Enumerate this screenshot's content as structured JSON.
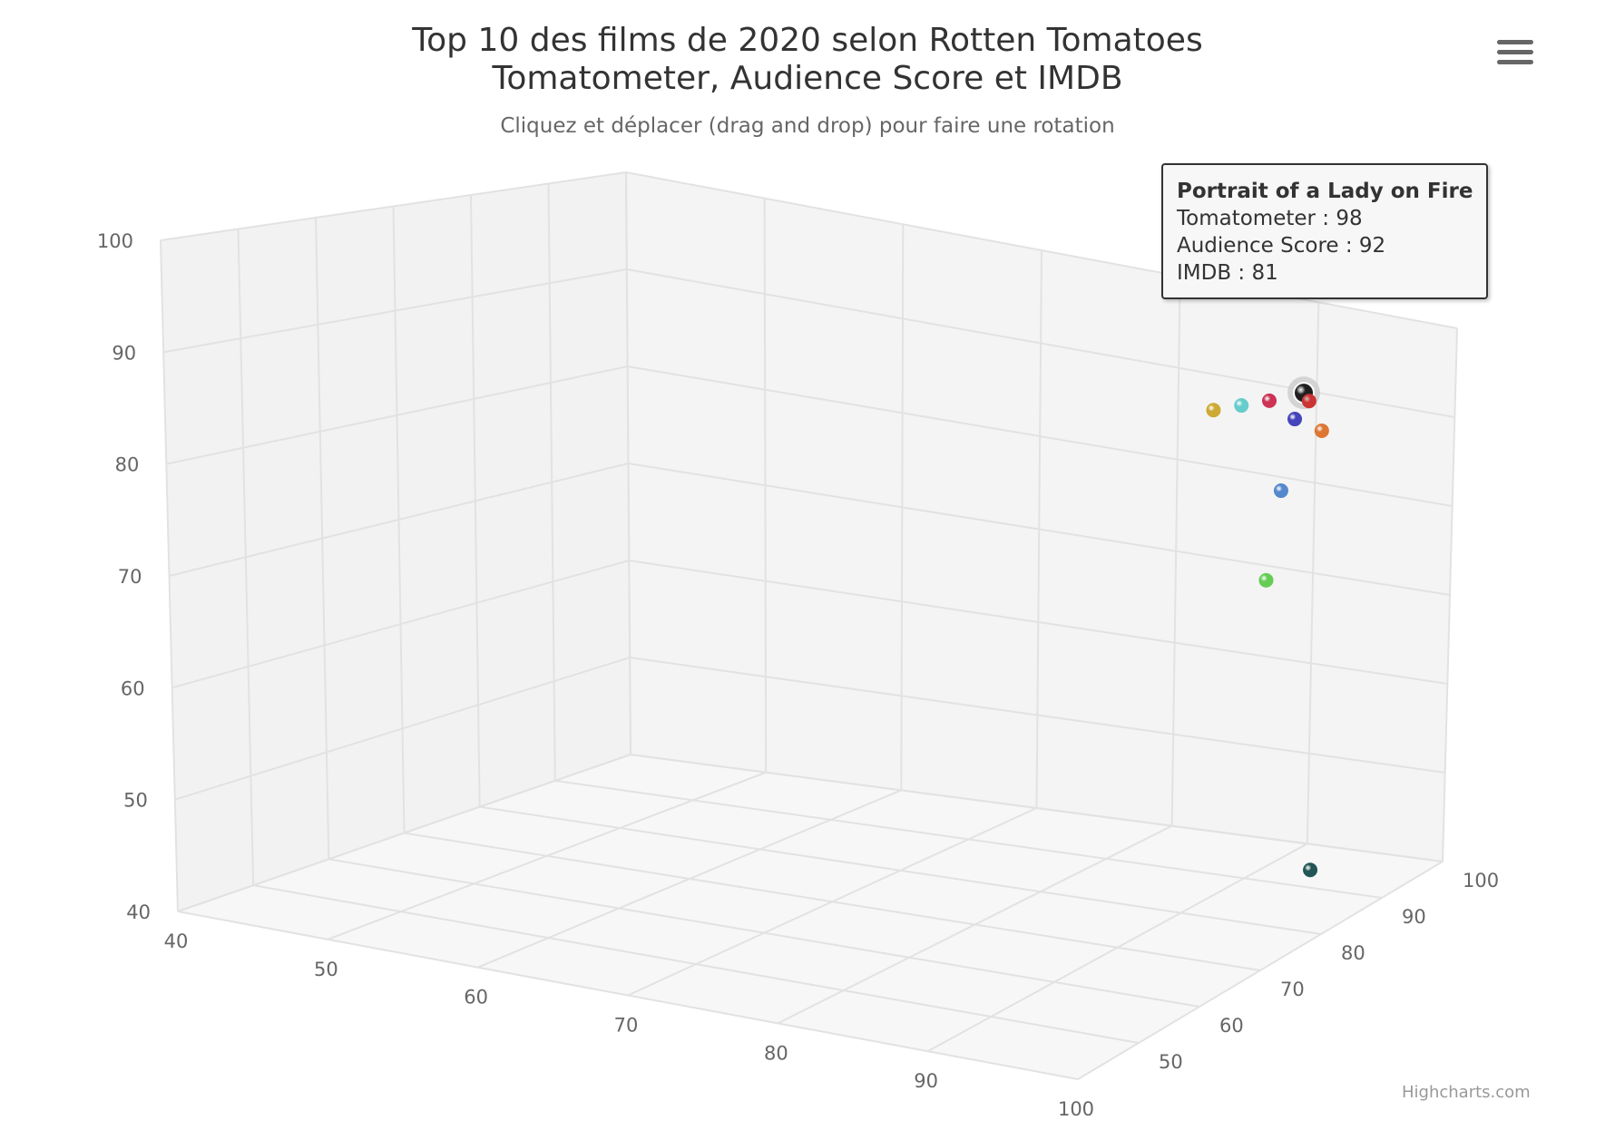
{
  "title_line1": "Top 10 des films de 2020 selon Rotten Tomatoes",
  "title_line2": "Tomatometer, Audience Score et IMDB",
  "subtitle": "Cliquez et déplacer (drag and drop) pour faire une rotation",
  "credits": "Highcharts.com",
  "menu_icon": "hamburger-menu-icon",
  "tooltip": {
    "name": "Portrait of a Lady on Fire",
    "line1": "Tomatometer : 98",
    "line2": "Audience Score : 92",
    "line3": "IMDB : 81"
  },
  "chart_data": {
    "type": "scatter",
    "x_ticks": [
      "40",
      "50",
      "60",
      "70",
      "80",
      "90",
      "100"
    ],
    "y_ticks": [
      "40",
      "50",
      "60",
      "70",
      "80",
      "90",
      "100"
    ],
    "z_ticks": [
      "50",
      "60",
      "70",
      "80",
      "90",
      "100"
    ],
    "xlim": [
      40,
      100
    ],
    "ylim": [
      40,
      100
    ],
    "zlim": [
      40,
      100
    ],
    "grid": true,
    "points": [
      {
        "x": 98,
        "y": 92,
        "z": 81,
        "color": "#1f1f1f",
        "highlighted": true
      },
      {
        "x": 97,
        "y": 91,
        "z": 84,
        "color": "#cc3333"
      },
      {
        "x": 96,
        "y": 89,
        "z": 84,
        "color": "#4444bb"
      },
      {
        "x": 97,
        "y": 88,
        "z": 86,
        "color": "#dd7733"
      },
      {
        "x": 96,
        "y": 82,
        "z": 82,
        "color": "#5588cc"
      },
      {
        "x": 95,
        "y": 73,
        "z": 82,
        "color": "#66cc55"
      },
      {
        "x": 89,
        "y": 89,
        "z": 95,
        "color": "#cc3355"
      },
      {
        "x": 87,
        "y": 88,
        "z": 95,
        "color": "#66cccc"
      },
      {
        "x": 85,
        "y": 87,
        "z": 95,
        "color": "#ccaa33"
      },
      {
        "x": 97,
        "y": 44,
        "z": 85,
        "color": "#225555"
      }
    ]
  }
}
